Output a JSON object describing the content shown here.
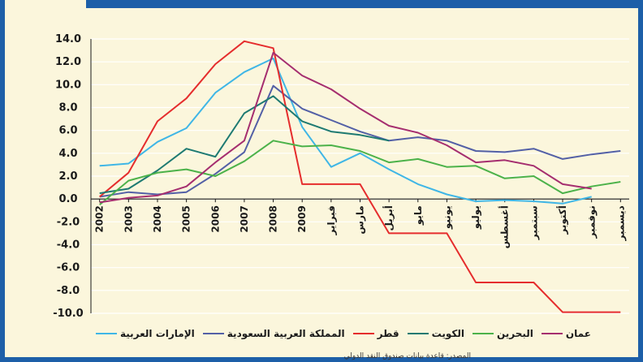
{
  "header": {
    "title": ""
  },
  "source_note": "المصدر: قاعدة بيانات صندوق النقد الدولي",
  "chart_data": {
    "type": "line",
    "title": "",
    "xlabel": "",
    "ylabel": "",
    "ylim": [
      -10,
      14
    ],
    "yticks": [
      "14.0",
      "12.0",
      "10.0",
      "8.0",
      "6.0",
      "4.0",
      "2.0",
      "0.0",
      "-2.0",
      "-4.0",
      "-6.0",
      "-8.0",
      "-10.0"
    ],
    "ytick_values": [
      14,
      12,
      10,
      8,
      6,
      4,
      2,
      0,
      -2,
      -4,
      -6,
      -8,
      -10
    ],
    "grid": true,
    "legend_position": "bottom",
    "categories": [
      "2002",
      "2003",
      "2004",
      "2005",
      "2006",
      "2007",
      "2008",
      "2009",
      "فبراير",
      "مارس",
      "أبريل",
      "مايو",
      "يونيو",
      "يوليو",
      "أغسطس",
      "سبتمبر",
      "أكتوبر",
      "نوفمبر",
      "ديسمبر"
    ],
    "series": [
      {
        "name": "الإمارات العربية",
        "color": "#3fb6e6",
        "values": [
          2.9,
          3.1,
          5.0,
          6.2,
          9.3,
          11.1,
          12.3,
          6.3,
          2.8,
          4.0,
          2.6,
          1.3,
          0.4,
          -0.2,
          -0.1,
          -0.2,
          -0.4,
          0.2,
          null
        ]
      },
      {
        "name": "المملكة العربية السعودية",
        "color": "#5360a6",
        "values": [
          0.2,
          0.6,
          0.4,
          0.6,
          2.2,
          4.1,
          9.9,
          7.9,
          6.9,
          5.9,
          5.1,
          5.4,
          5.1,
          4.2,
          4.1,
          4.4,
          3.5,
          3.9,
          4.2
        ]
      },
      {
        "name": "قطر",
        "color": "#e52d2d",
        "values": [
          0.2,
          2.3,
          6.8,
          8.8,
          11.8,
          13.8,
          13.2,
          1.3,
          1.3,
          1.3,
          -3.0,
          -3.0,
          -3.0,
          -7.3,
          -7.3,
          -7.3,
          -9.9,
          -9.9,
          -9.9
        ]
      },
      {
        "name": "الكويت",
        "color": "#1e7a72",
        "values": [
          0.5,
          0.9,
          2.5,
          4.4,
          3.7,
          7.5,
          9.0,
          6.8,
          5.9,
          5.6,
          5.1,
          null,
          null,
          null,
          null,
          null,
          null,
          null,
          null
        ]
      },
      {
        "name": "البحرين",
        "color": "#4cb24a",
        "values": [
          -0.5,
          1.6,
          2.3,
          2.6,
          2.0,
          3.3,
          5.1,
          4.6,
          4.7,
          4.2,
          3.2,
          3.5,
          2.8,
          2.9,
          1.8,
          2.0,
          0.5,
          1.1,
          1.5
        ]
      },
      {
        "name": "عمان",
        "color": "#a52e6f",
        "values": [
          -0.3,
          0.1,
          0.3,
          1.1,
          3.2,
          5.1,
          12.8,
          10.8,
          9.6,
          7.9,
          6.4,
          5.8,
          4.7,
          3.2,
          3.4,
          2.9,
          1.3,
          0.9,
          null
        ]
      }
    ]
  }
}
